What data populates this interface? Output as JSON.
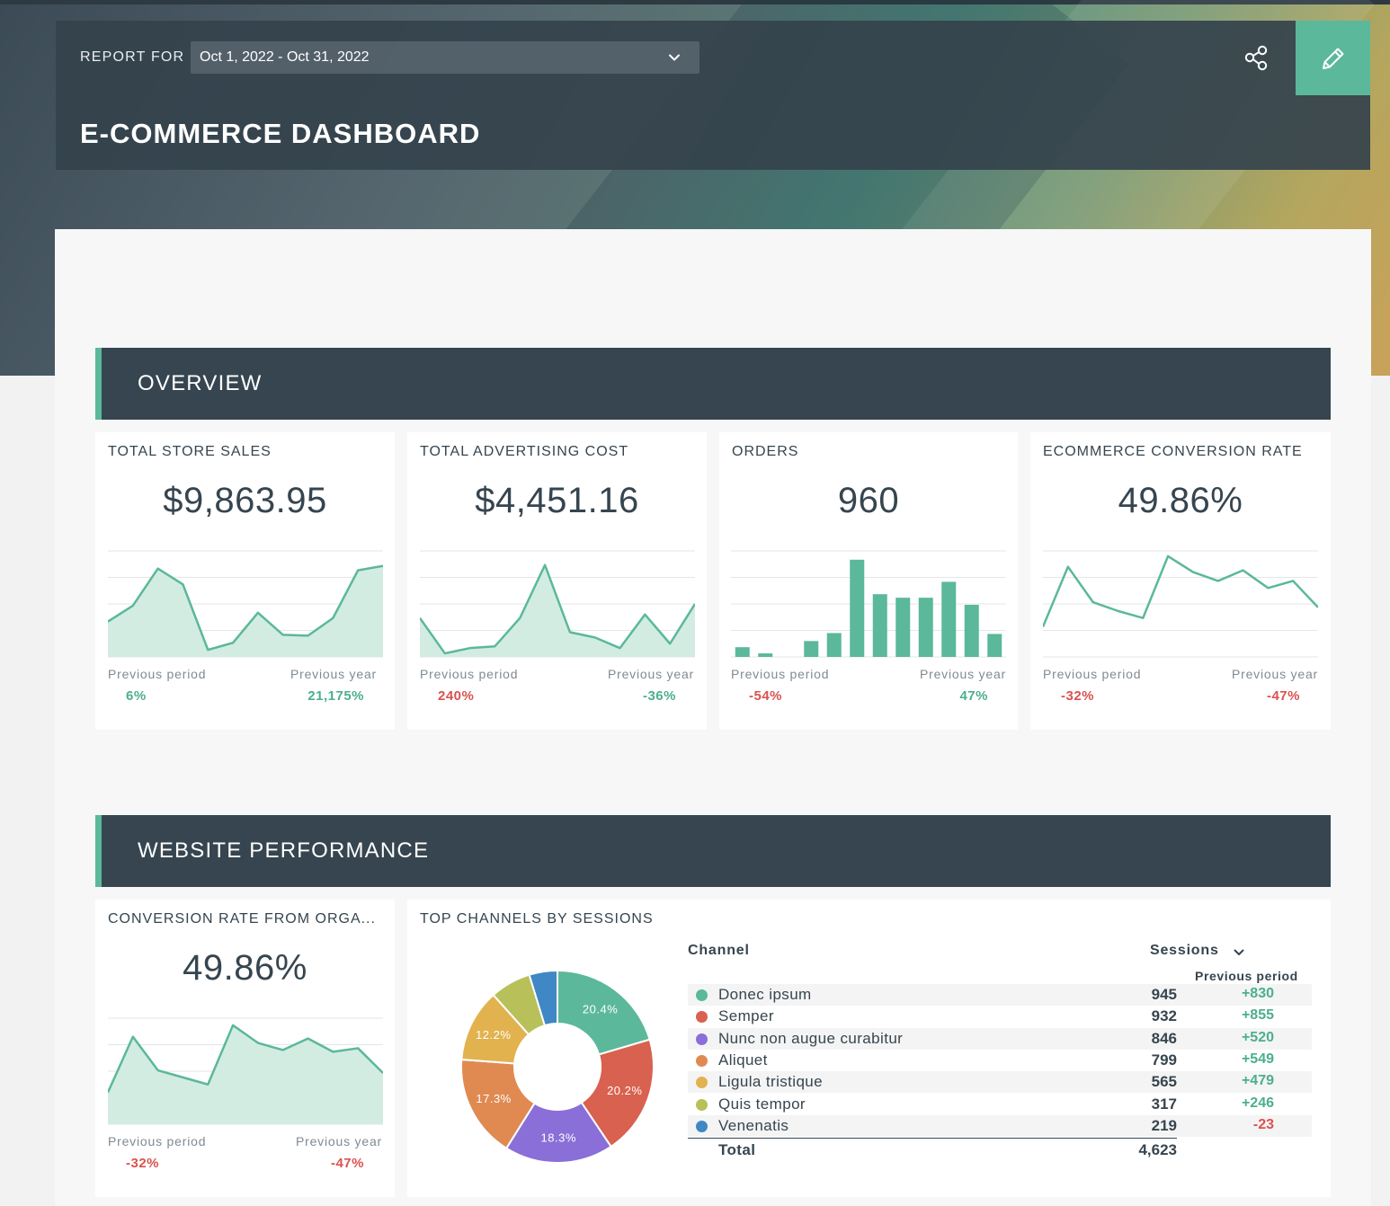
{
  "header": {
    "report_for_label": "REPORT FOR",
    "date_range": "Oct 1, 2022 - Oct 31, 2022",
    "title": "E-COMMERCE DASHBOARD"
  },
  "colors": {
    "accent": "#5bb89b",
    "dark": "#36454f",
    "positive": "#4caf8b",
    "negative": "#d9534f"
  },
  "sections": {
    "overview": "OVERVIEW",
    "website_performance": "WEBSITE PERFORMANCE"
  },
  "cards": [
    {
      "title": "TOTAL STORE SALES",
      "value": "$9,863.95",
      "prev_period_label": "Previous period",
      "prev_period": "6%",
      "prev_year_label": "Previous year",
      "prev_year": "21,175%"
    },
    {
      "title": "TOTAL ADVERTISING COST",
      "value": "$4,451.16",
      "prev_period_label": "Previous period",
      "prev_period": "240%",
      "prev_year_label": "Previous year",
      "prev_year": "-36%"
    },
    {
      "title": "ORDERS",
      "value": "960",
      "prev_period_label": "Previous period",
      "prev_period": "-54%",
      "prev_year_label": "Previous year",
      "prev_year": "47%"
    },
    {
      "title": "ECOMMERCE CONVERSION RATE",
      "value": "49.86%",
      "prev_period_label": "Previous period",
      "prev_period": "-32%",
      "prev_year_label": "Previous year",
      "prev_year": "-47%"
    },
    {
      "title": "CONVERSION RATE FROM ORGA...",
      "value": "49.86%",
      "prev_period_label": "Previous period",
      "prev_period": "-32%",
      "prev_year_label": "Previous year",
      "prev_year": "-47%"
    }
  ],
  "channels_card": {
    "title": "TOP CHANNELS BY SESSIONS",
    "col_channel": "Channel",
    "col_sessions": "Sessions",
    "col_prev": "Previous period",
    "rows": [
      {
        "name": "Donec ipsum",
        "sessions": "945",
        "prev": "+830",
        "color": "#5bb89b"
      },
      {
        "name": "Semper",
        "sessions": "932",
        "prev": "+855",
        "color": "#d9614f"
      },
      {
        "name": "Nunc non augue curabitur",
        "sessions": "846",
        "prev": "+520",
        "color": "#8a6fd8"
      },
      {
        "name": "Aliquet",
        "sessions": "799",
        "prev": "+549",
        "color": "#e08a52"
      },
      {
        "name": "Ligula tristique",
        "sessions": "565",
        "prev": "+479",
        "color": "#e2b24f"
      },
      {
        "name": "Quis tempor",
        "sessions": "317",
        "prev": "+246",
        "color": "#b8c05a"
      },
      {
        "name": "Venenatis",
        "sessions": "219",
        "prev": "-23",
        "color": "#3f88c5"
      }
    ],
    "total_label": "Total",
    "total_value": "4,623"
  },
  "chart_data": [
    {
      "type": "area",
      "title": "TOTAL STORE SALES",
      "values": [
        40,
        58,
        100,
        82,
        8,
        16,
        50,
        25,
        24,
        44,
        98,
        103
      ],
      "ylim": [
        0,
        120
      ],
      "grid": true
    },
    {
      "type": "area",
      "title": "TOTAL ADVERTISING COST",
      "values": [
        44,
        4,
        10,
        12,
        44,
        104,
        28,
        22,
        10,
        48,
        15,
        60
      ],
      "ylim": [
        0,
        120
      ],
      "grid": true
    },
    {
      "type": "bar",
      "title": "ORDERS",
      "values": [
        11,
        4,
        0,
        18,
        27,
        110,
        71,
        67,
        67,
        85,
        59,
        26
      ],
      "ylim": [
        0,
        120
      ],
      "grid": true
    },
    {
      "type": "line",
      "title": "ECOMMERCE CONVERSION RATE",
      "values": [
        34,
        102,
        62,
        52,
        44,
        114,
        96,
        86,
        98,
        78,
        86,
        56
      ],
      "ylim": [
        0,
        120
      ],
      "grid": true
    },
    {
      "type": "area",
      "title": "CONVERSION RATE FROM ORGA...",
      "values": [
        36,
        99,
        61,
        53,
        45,
        112,
        92,
        84,
        97,
        82,
        86,
        58
      ],
      "ylim": [
        0,
        120
      ],
      "grid": true
    },
    {
      "type": "pie",
      "title": "TOP CHANNELS BY SESSIONS",
      "categories": [
        "Donec ipsum",
        "Semper",
        "Nunc non augue curabitur",
        "Aliquet",
        "Ligula tristique",
        "Quis tempor",
        "Venenatis"
      ],
      "values": [
        945,
        932,
        846,
        799,
        565,
        317,
        219
      ],
      "labels": [
        "20.4%",
        "20.2%",
        "18.3%",
        "17.3%",
        "12.2%",
        "",
        ""
      ],
      "colors": [
        "#5bb89b",
        "#d9614f",
        "#8a6fd8",
        "#e08a52",
        "#e2b24f",
        "#b8c05a",
        "#3f88c5"
      ]
    }
  ]
}
